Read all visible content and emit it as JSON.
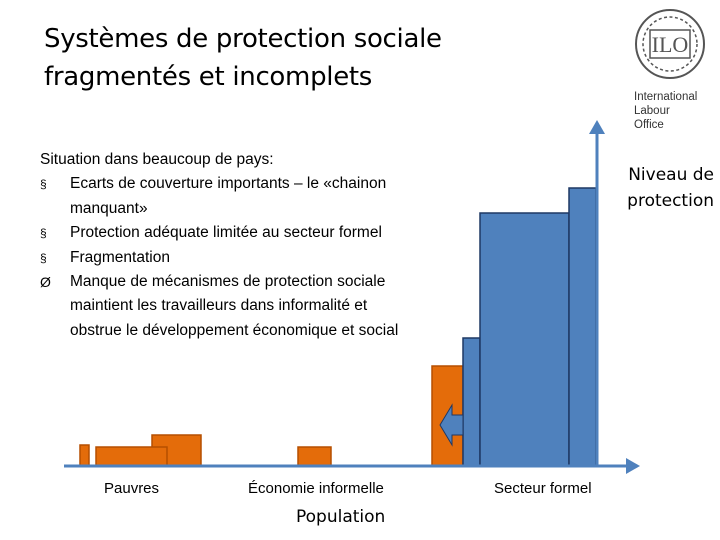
{
  "title": {
    "line1": "Systèmes de protection sociale",
    "line2": "fragmentés et incomplets"
  },
  "logo": {
    "name": "ILO",
    "lines": [
      "International",
      "Labour",
      "Office"
    ]
  },
  "content": {
    "intro": "Situation dans beaucoup de pays:",
    "bullets": [
      {
        "icon": "square-bullet-icon",
        "glyph": "§",
        "text": "Ecarts de couverture importants – le «chainon manquant»"
      },
      {
        "icon": "square-bullet-icon",
        "glyph": "§",
        "text": "Protection adéquate limitée au secteur formel"
      },
      {
        "icon": "square-bullet-icon",
        "glyph": "§",
        "text": "Fragmentation"
      },
      {
        "icon": "arrow-bullet-icon",
        "glyph": "Ø",
        "text": "Manque de mécanismes de protection sociale maintient les travailleurs dans informalité et obstrue le développement économique et social"
      }
    ]
  },
  "diagram": {
    "y_axis_label_line1": "Niveau de",
    "y_axis_label_line2": "protection",
    "x_axis_label": "Population",
    "group_labels": [
      "Pauvres",
      "Économie informelle",
      "Secteur formel"
    ],
    "colors": {
      "orange": "#E46C0A",
      "orange_stroke": "#B54F00",
      "blue": "#4F81BD",
      "blue_stroke": "#1F3864",
      "axis": "#4F81BD"
    }
  }
}
